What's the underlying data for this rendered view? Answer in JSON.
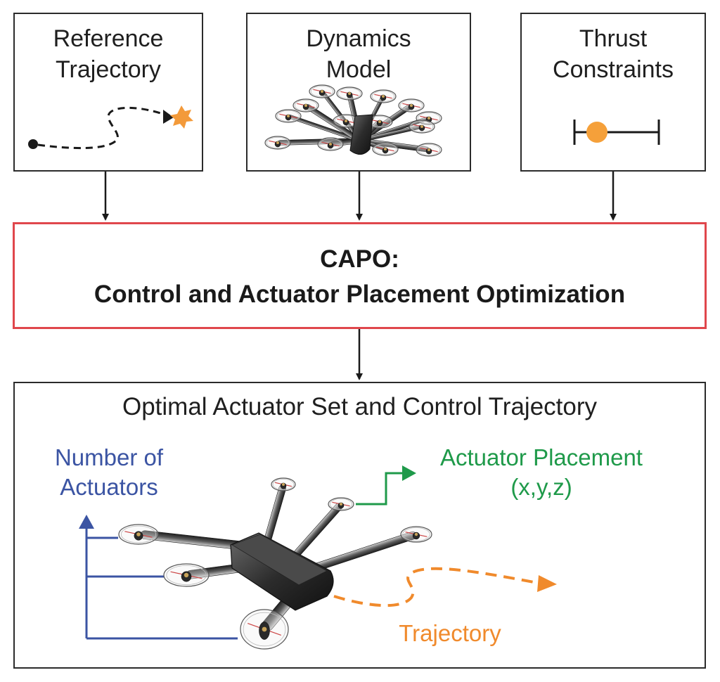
{
  "inputs": {
    "reference": {
      "line1": "Reference",
      "line2": "Trajectory"
    },
    "dynamics": {
      "line1": "Dynamics",
      "line2": "Model"
    },
    "thrust": {
      "line1": "Thrust",
      "line2": "Constraints"
    }
  },
  "capo": {
    "line1": "CAPO:",
    "line2": "Control and Actuator Placement Optimization"
  },
  "output": {
    "title": "Optimal Actuator Set and Control Trajectory",
    "number_of_actuators": {
      "line1": "Number of",
      "line2": "Actuators"
    },
    "actuator_placement": {
      "line1": "Actuator Placement",
      "line2": "(x,y,z)"
    },
    "trajectory": "Trajectory"
  },
  "colors": {
    "capo_border": "#e0474c",
    "blue": "#3b54a3",
    "green": "#1f9a4a",
    "orange": "#f08a2c",
    "thrust_dot": "#f5a03a"
  }
}
